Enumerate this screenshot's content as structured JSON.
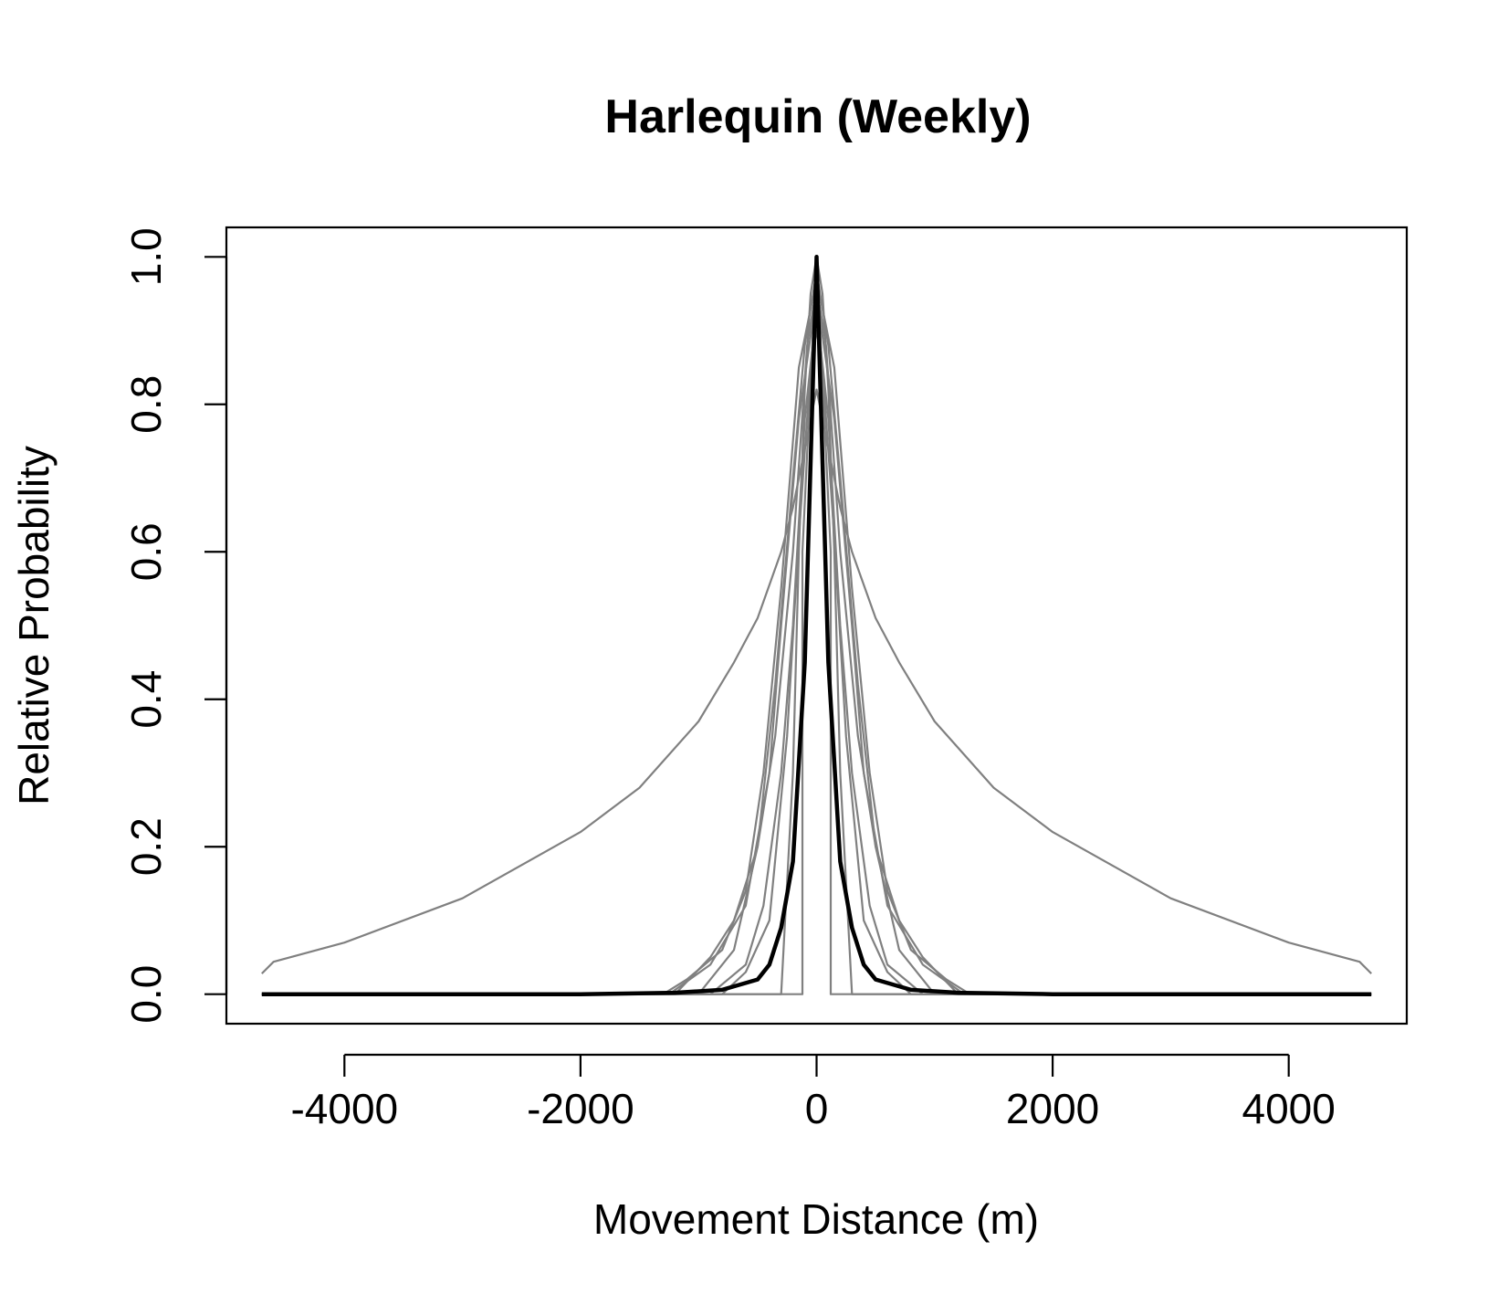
{
  "chart_data": {
    "type": "line",
    "title": "Harlequin (Weekly)",
    "xlabel": "Movement Distance (m)",
    "ylabel": "Relative Probability",
    "xlim": [
      -5000,
      5000
    ],
    "ylim": [
      -0.04,
      1.04
    ],
    "xticks": [
      -4000,
      -2000,
      0,
      2000,
      4000
    ],
    "yticks": [
      0.0,
      0.2,
      0.4,
      0.6,
      0.8,
      1.0
    ],
    "xtick_labels": [
      "-4000",
      "-2000",
      "0",
      "2000",
      "4000"
    ],
    "ytick_labels": [
      "0.0",
      "0.2",
      "0.4",
      "0.6",
      "0.8",
      "1.0"
    ],
    "grid": false,
    "legend": "none",
    "colors": {
      "gray": "#808080",
      "mean": "#000000"
    },
    "series": [
      {
        "style": "gray",
        "x": [
          -4700,
          -4600,
          -4000,
          -3000,
          -2000,
          -1500,
          -1000,
          -700,
          -500,
          -300,
          -200,
          -100,
          0,
          100,
          200,
          300,
          500,
          700,
          1000,
          1500,
          2000,
          3000,
          4000,
          4600,
          4700
        ],
        "y": [
          0.028,
          0.044,
          0.07,
          0.13,
          0.22,
          0.28,
          0.37,
          0.45,
          0.51,
          0.6,
          0.66,
          0.74,
          0.82,
          0.74,
          0.66,
          0.6,
          0.51,
          0.45,
          0.37,
          0.28,
          0.22,
          0.13,
          0.07,
          0.044,
          0.028
        ]
      },
      {
        "style": "gray",
        "x": [
          -4700,
          -300,
          -200,
          -150,
          -100,
          -50,
          0,
          50,
          100,
          150,
          200,
          300,
          4700
        ],
        "y": [
          0.0,
          0.0,
          0.3,
          0.6,
          0.82,
          0.95,
          1.0,
          0.95,
          0.82,
          0.6,
          0.3,
          0.0,
          0.0
        ]
      },
      {
        "style": "gray",
        "x": [
          -4700,
          -120,
          -120,
          0,
          120,
          120,
          4700
        ],
        "y": [
          0.0,
          0.0,
          0.6,
          1.0,
          0.6,
          0.0,
          0.0
        ]
      },
      {
        "style": "gray",
        "x": [
          -4700,
          -1250,
          -900,
          -600,
          -400,
          -300,
          -150,
          0,
          150,
          300,
          400,
          600,
          900,
          1250,
          4700
        ],
        "y": [
          0.0,
          0.0,
          0.04,
          0.12,
          0.3,
          0.5,
          0.78,
          0.95,
          0.78,
          0.5,
          0.3,
          0.12,
          0.04,
          0.0,
          0.0
        ]
      },
      {
        "style": "gray",
        "x": [
          -4700,
          -1300,
          -1100,
          -800,
          -600,
          -450,
          -300,
          -150,
          0,
          150,
          300,
          450,
          600,
          800,
          1100,
          1300,
          4700
        ],
        "y": [
          0.0,
          0.0,
          0.02,
          0.06,
          0.14,
          0.3,
          0.55,
          0.85,
          0.97,
          0.85,
          0.55,
          0.3,
          0.14,
          0.06,
          0.02,
          0.0,
          0.0
        ]
      },
      {
        "style": "gray",
        "x": [
          -4700,
          -1000,
          -700,
          -500,
          -350,
          -200,
          -100,
          0,
          100,
          200,
          350,
          500,
          700,
          1000,
          4700
        ],
        "y": [
          0.0,
          0.0,
          0.06,
          0.2,
          0.42,
          0.7,
          0.88,
          0.98,
          0.88,
          0.7,
          0.42,
          0.2,
          0.06,
          0.0,
          0.0
        ]
      },
      {
        "style": "gray",
        "x": [
          -4700,
          -900,
          -600,
          -450,
          -300,
          -200,
          -100,
          0,
          100,
          200,
          300,
          450,
          600,
          900,
          4700
        ],
        "y": [
          0.0,
          0.0,
          0.04,
          0.12,
          0.3,
          0.5,
          0.78,
          0.93,
          0.78,
          0.5,
          0.3,
          0.12,
          0.04,
          0.0,
          0.0
        ]
      },
      {
        "style": "gray",
        "x": [
          -4700,
          -800,
          -600,
          -400,
          -250,
          -150,
          -50,
          0,
          50,
          150,
          250,
          400,
          600,
          800,
          4700
        ],
        "y": [
          0.0,
          0.0,
          0.03,
          0.1,
          0.35,
          0.62,
          0.85,
          0.9,
          0.85,
          0.62,
          0.35,
          0.1,
          0.03,
          0.0,
          0.0
        ]
      },
      {
        "style": "gray",
        "x": [
          -4700,
          -1200,
          -900,
          -700,
          -500,
          -350,
          -200,
          -80,
          0,
          80,
          200,
          350,
          500,
          700,
          900,
          1200,
          4700
        ],
        "y": [
          0.0,
          0.0,
          0.05,
          0.1,
          0.2,
          0.35,
          0.6,
          0.88,
          0.96,
          0.88,
          0.6,
          0.35,
          0.2,
          0.1,
          0.05,
          0.0,
          0.0
        ]
      },
      {
        "style": "mean",
        "x": [
          -4700,
          -2000,
          -1200,
          -800,
          -500,
          -400,
          -300,
          -200,
          -100,
          0,
          100,
          200,
          300,
          400,
          500,
          800,
          1200,
          2000,
          4700
        ],
        "y": [
          0.0,
          0.0,
          0.002,
          0.006,
          0.02,
          0.04,
          0.09,
          0.18,
          0.45,
          1.0,
          0.45,
          0.18,
          0.09,
          0.04,
          0.02,
          0.006,
          0.002,
          0.0,
          0.0
        ]
      }
    ]
  }
}
